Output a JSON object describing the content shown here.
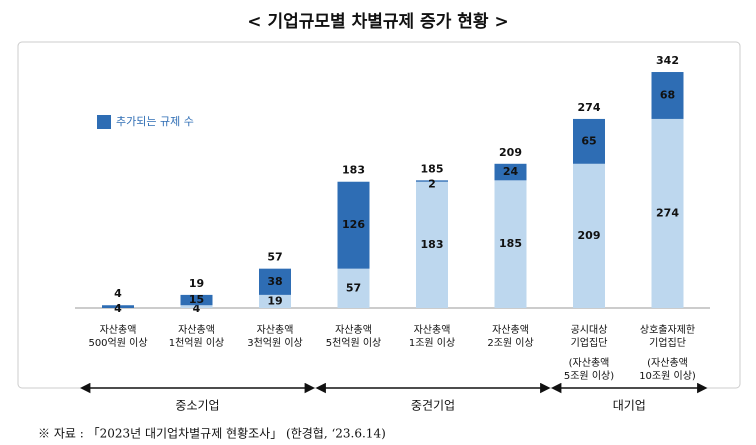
{
  "chart_data": {
    "type": "stacked-bar",
    "title": "< 기업규모별 차별규제 증가 현황 >",
    "categories": [
      [
        "자산총액",
        "500억원 이상"
      ],
      [
        "자산총액",
        "1천억원 이상"
      ],
      [
        "자산총액",
        "3천억원 이상"
      ],
      [
        "자산총액",
        "5천억원 이상"
      ],
      [
        "자산총액",
        "1조원 이상"
      ],
      [
        "자산총액",
        "2조원 이상"
      ],
      [
        "공시대상",
        "기업집단"
      ],
      [
        "상호출자제한",
        "기업집단"
      ]
    ],
    "category_notes": [
      null,
      null,
      null,
      null,
      null,
      null,
      [
        "(자산총액",
        "5조원 이상)"
      ],
      [
        "(자산총액",
        "10조원 이상)"
      ]
    ],
    "series": [
      {
        "color": "#bdd7ee",
        "values": [
          null,
          4,
          19,
          57,
          183,
          185,
          209,
          274
        ]
      },
      {
        "name": "추가되는 규제 수",
        "color": "#2e6db4",
        "values": [
          4,
          15,
          38,
          126,
          2,
          24,
          65,
          68
        ]
      }
    ],
    "totals": [
      4,
      19,
      57,
      183,
      185,
      209,
      274,
      342
    ],
    "ylim": [
      0,
      360
    ],
    "groups": [
      {
        "label": "중소기업",
        "from": 0,
        "to": 2
      },
      {
        "label": "중견기업",
        "from": 3,
        "to": 5
      },
      {
        "label": "대기업",
        "from": 6,
        "to": 7
      }
    ],
    "source": "※ 자료 : 「2023년 대기업차별규제 현황조사」 (한경협, ‘23.6.14)"
  }
}
